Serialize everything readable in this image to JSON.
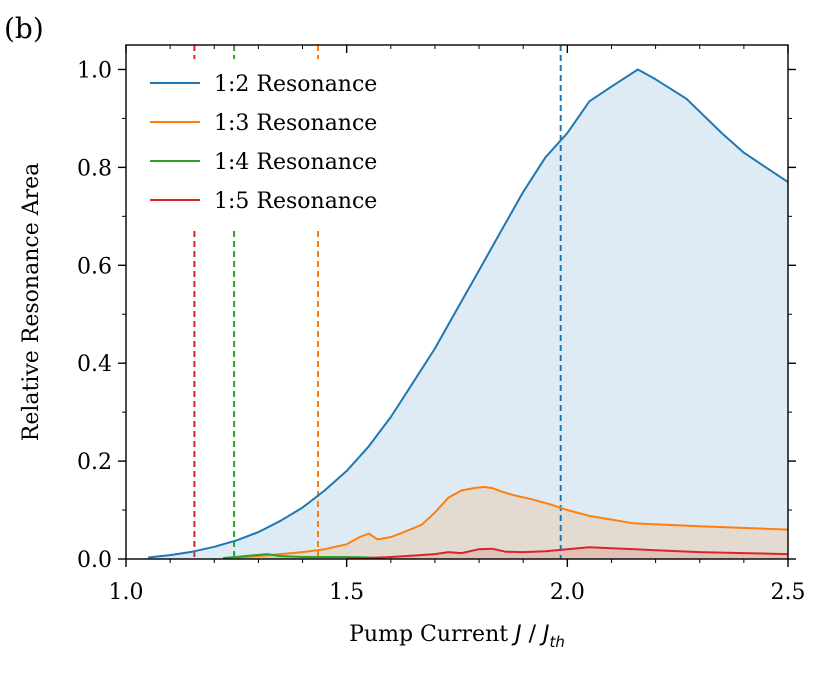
{
  "chart_data": {
    "type": "area",
    "panel_label": "(b)",
    "title": "",
    "xlabel_main": "Pump Current ",
    "xlabel_j": "J",
    "xlabel_sep": " / ",
    "xlabel_jth": "J",
    "xlabel_jth_sub": "th",
    "ylabel": "Relative Resonance Area",
    "xlim": [
      1.0,
      2.5
    ],
    "ylim": [
      0.0,
      1.05
    ],
    "xticks": [
      1.0,
      1.5,
      2.0,
      2.5
    ],
    "xtick_labels": [
      "1.0",
      "1.5",
      "2.0",
      "2.5"
    ],
    "yticks": [
      0.0,
      0.2,
      0.4,
      0.6,
      0.8,
      1.0
    ],
    "ytick_labels": [
      "0.0",
      "0.2",
      "0.4",
      "0.6",
      "0.8",
      "1.0"
    ],
    "minor_x_step": 0.1,
    "minor_y_step": 0.1,
    "grid": false,
    "legend_position": "top-left",
    "series": [
      {
        "name": "1:2 Resonance",
        "color": "#1f77b4",
        "fill_color": "#1f77b4",
        "fill_alpha": 0.15,
        "threshold": 1.985,
        "x": [
          1.05,
          1.1,
          1.15,
          1.2,
          1.25,
          1.3,
          1.35,
          1.4,
          1.45,
          1.5,
          1.55,
          1.6,
          1.65,
          1.7,
          1.75,
          1.8,
          1.85,
          1.9,
          1.95,
          2.0,
          2.05,
          2.1,
          2.16,
          2.2,
          2.27,
          2.35,
          2.4,
          2.5
        ],
        "y": [
          0.003,
          0.008,
          0.015,
          0.025,
          0.038,
          0.055,
          0.078,
          0.105,
          0.14,
          0.18,
          0.23,
          0.29,
          0.36,
          0.43,
          0.51,
          0.59,
          0.67,
          0.75,
          0.82,
          0.87,
          0.935,
          0.965,
          1.0,
          0.98,
          0.94,
          0.87,
          0.83,
          0.77
        ]
      },
      {
        "name": "1:3 Resonance",
        "color": "#ff7f0e",
        "fill_color": "#ff7f0e",
        "fill_alpha": 0.15,
        "threshold": 1.435,
        "x": [
          1.25,
          1.3,
          1.35,
          1.4,
          1.45,
          1.5,
          1.53,
          1.55,
          1.57,
          1.6,
          1.63,
          1.67,
          1.7,
          1.73,
          1.76,
          1.79,
          1.81,
          1.83,
          1.85,
          1.88,
          1.92,
          1.96,
          2.0,
          2.05,
          2.15,
          2.3,
          2.5
        ],
        "y": [
          0.003,
          0.006,
          0.01,
          0.014,
          0.02,
          0.03,
          0.045,
          0.052,
          0.04,
          0.045,
          0.055,
          0.07,
          0.095,
          0.125,
          0.14,
          0.145,
          0.147,
          0.145,
          0.138,
          0.13,
          0.122,
          0.112,
          0.1,
          0.088,
          0.073,
          0.067,
          0.06
        ]
      },
      {
        "name": "1:4 Resonance",
        "color": "#2ca02c",
        "fill_color": "#2ca02c",
        "fill_alpha": 0.15,
        "threshold": 1.245,
        "x": [
          1.22,
          1.25,
          1.28,
          1.32,
          1.35,
          1.38,
          1.4,
          1.45,
          1.5,
          1.55,
          1.58
        ],
        "y": [
          0.002,
          0.004,
          0.007,
          0.01,
          0.006,
          0.005,
          0.004,
          0.004,
          0.004,
          0.003,
          0.001
        ]
      },
      {
        "name": "1:5 Resonance",
        "color": "#d62728",
        "fill_color": "#d62728",
        "fill_alpha": 0.15,
        "threshold": 1.155,
        "x": [
          1.5,
          1.55,
          1.6,
          1.65,
          1.7,
          1.73,
          1.76,
          1.8,
          1.83,
          1.86,
          1.9,
          1.95,
          2.0,
          2.05,
          2.1,
          2.2,
          2.3,
          2.4,
          2.5
        ],
        "y": [
          0.001,
          0.002,
          0.004,
          0.007,
          0.01,
          0.014,
          0.012,
          0.02,
          0.021,
          0.015,
          0.014,
          0.016,
          0.02,
          0.024,
          0.022,
          0.018,
          0.014,
          0.012,
          0.01
        ]
      }
    ]
  }
}
